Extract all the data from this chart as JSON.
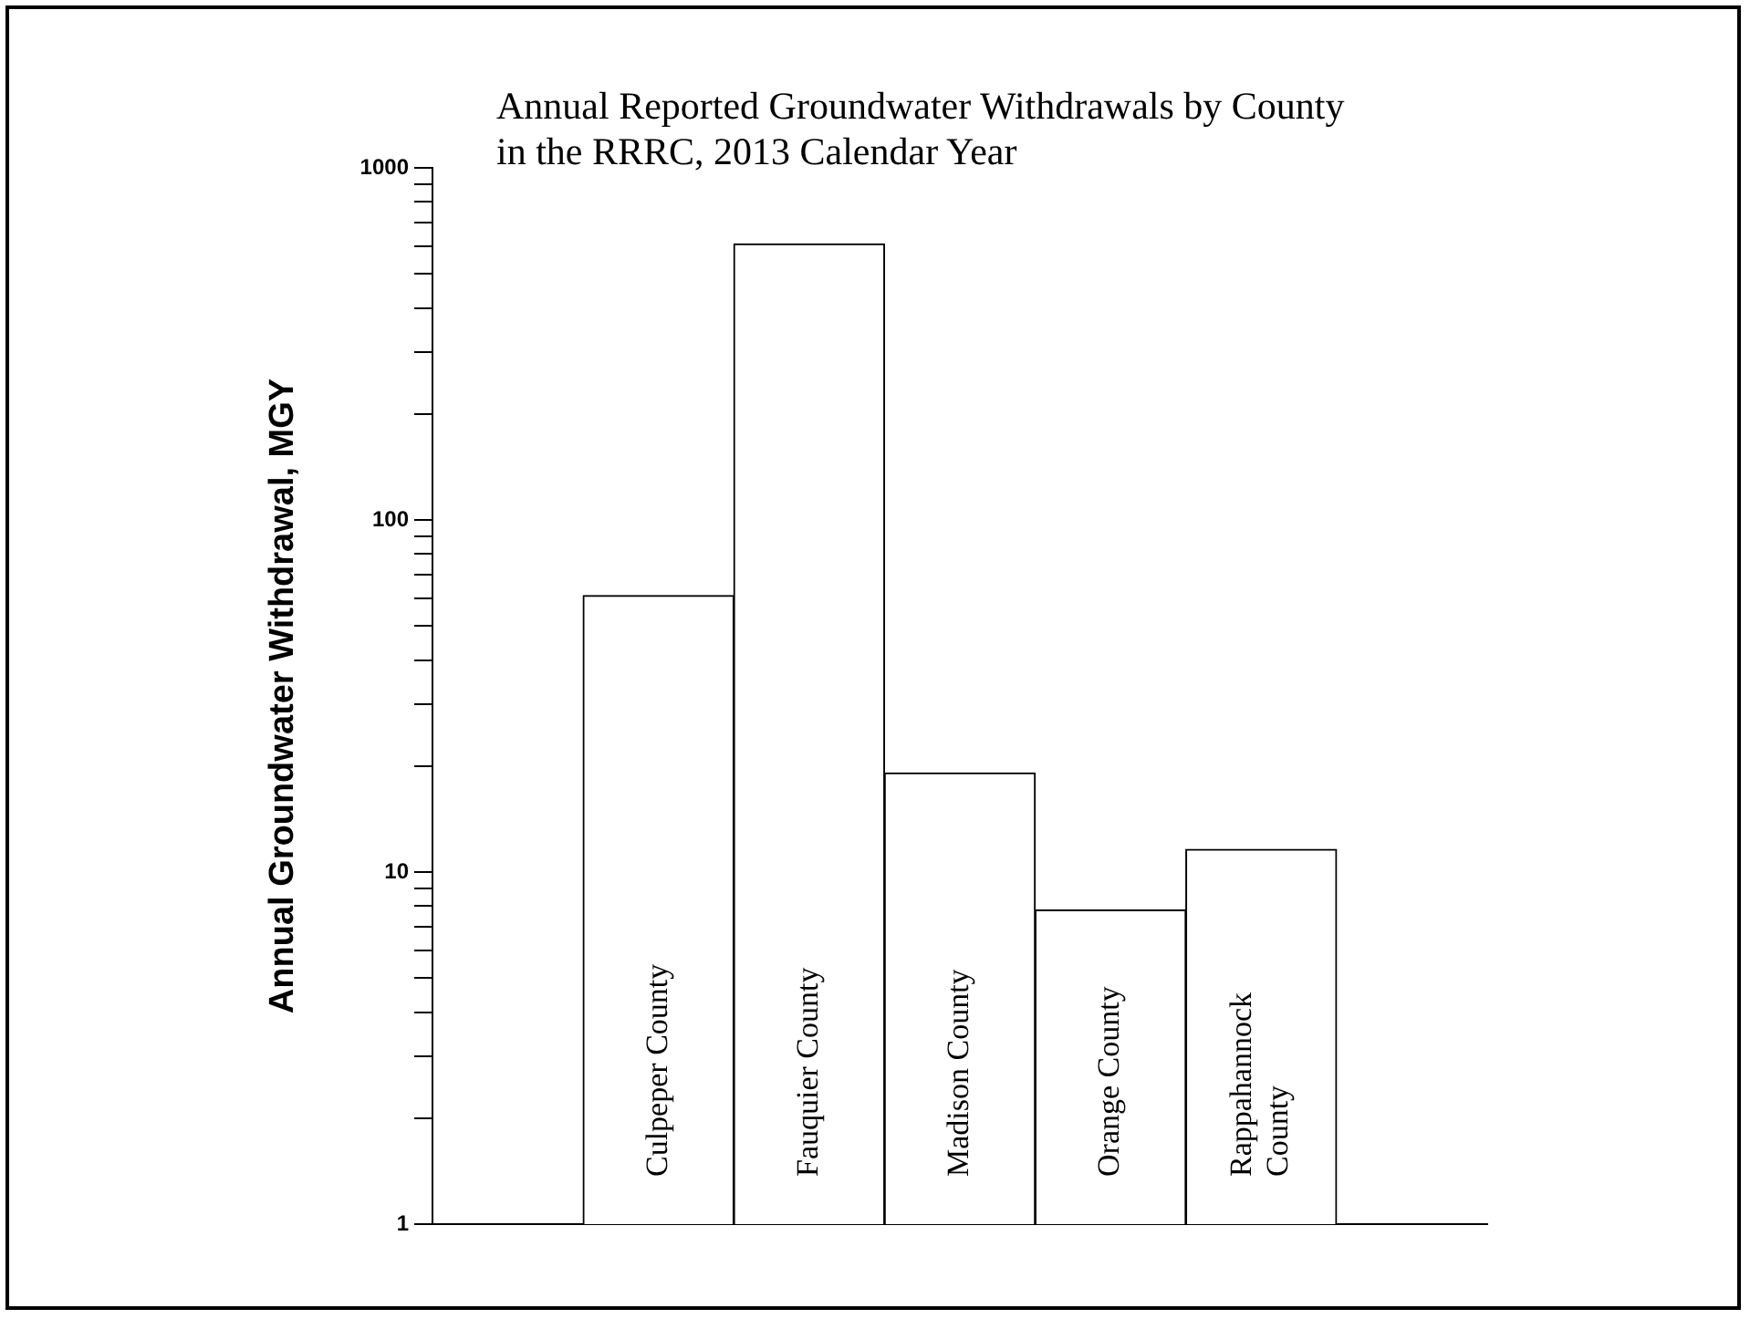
{
  "chart_data": {
    "type": "bar",
    "title": "Annual Reported Groundwater Withdrawals by County\nin the RRRC, 2013 Calendar Year",
    "ylabel": "Annual Groundwater Withdrawal, MGY",
    "categories": [
      null,
      "Culpeper County",
      "Fauquier County",
      "Madison County",
      "Orange County",
      "Rappahannock County",
      null
    ],
    "values": [
      null,
      61,
      608,
      19.1,
      7.8,
      11.6,
      null
    ],
    "color": "#ffffff",
    "log": true,
    "ylim": [
      1,
      1000
    ],
    "yticks": [
      1,
      {
        "value": 2,
        "label": null
      },
      {
        "value": 3,
        "label": null
      },
      {
        "value": 4,
        "label": null
      },
      {
        "value": 5,
        "label": null
      },
      {
        "value": 6,
        "label": null
      },
      {
        "value": 7,
        "label": null
      },
      {
        "value": 8,
        "label": null
      },
      {
        "value": 9,
        "label": null
      },
      10,
      {
        "value": 20,
        "label": null
      },
      {
        "value": 30,
        "label": null
      },
      {
        "value": 40,
        "label": null
      },
      {
        "value": 50,
        "label": null
      },
      {
        "value": 60,
        "label": null
      },
      {
        "value": 70,
        "label": null
      },
      {
        "value": 80,
        "label": null
      },
      {
        "value": 90,
        "label": null
      },
      100,
      {
        "value": 200,
        "label": null
      },
      {
        "value": 300,
        "label": null
      },
      {
        "value": 400,
        "label": null
      },
      {
        "value": 500,
        "label": null
      },
      {
        "value": 600,
        "label": null
      },
      {
        "value": 700,
        "label": null
      },
      {
        "value": 800,
        "label": null
      },
      {
        "value": 900,
        "label": null
      },
      1000
    ],
    "grid": false,
    "legend": false
  }
}
